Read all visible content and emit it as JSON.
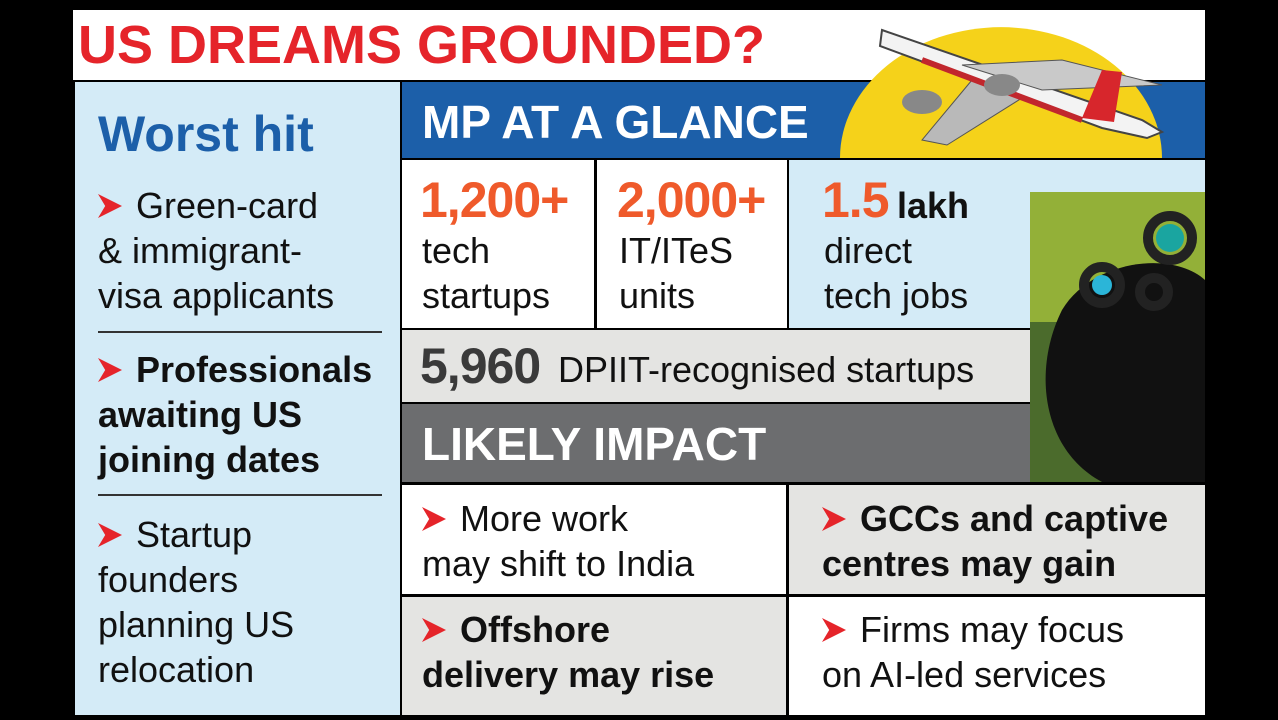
{
  "title": "US DREAMS GROUNDED?",
  "worst_hit": {
    "heading": "Worst hit",
    "items": [
      {
        "lines": [
          "Green-card",
          "& immigrant-",
          "visa applicants"
        ]
      },
      {
        "lines": [
          "Professionals",
          "awaiting US",
          "joining dates"
        ]
      },
      {
        "lines": [
          "Startup",
          "founders",
          "planning US",
          "relocation"
        ]
      }
    ]
  },
  "glance": {
    "heading": "MP AT A GLANCE",
    "stats": [
      {
        "number": "1,200+",
        "lines": [
          "tech",
          "startups"
        ]
      },
      {
        "number": "2,000+",
        "lines": [
          "IT/ITeS",
          "units"
        ]
      },
      {
        "number": "1.5",
        "unit": "lakh",
        "lines": [
          "direct",
          "tech jobs"
        ]
      }
    ],
    "dpiit": {
      "number": "5,960",
      "label": "DPIIT-recognised startups"
    }
  },
  "impact": {
    "heading": "LIKELY IMPACT",
    "items": [
      {
        "lines": [
          "More work",
          "may shift to India"
        ]
      },
      {
        "lines": [
          "GCCs and captive",
          "centres may gain"
        ]
      },
      {
        "lines": [
          "Offshore",
          "delivery may rise"
        ]
      },
      {
        "lines": [
          "Firms may focus",
          "on AI-led services"
        ]
      }
    ]
  }
}
